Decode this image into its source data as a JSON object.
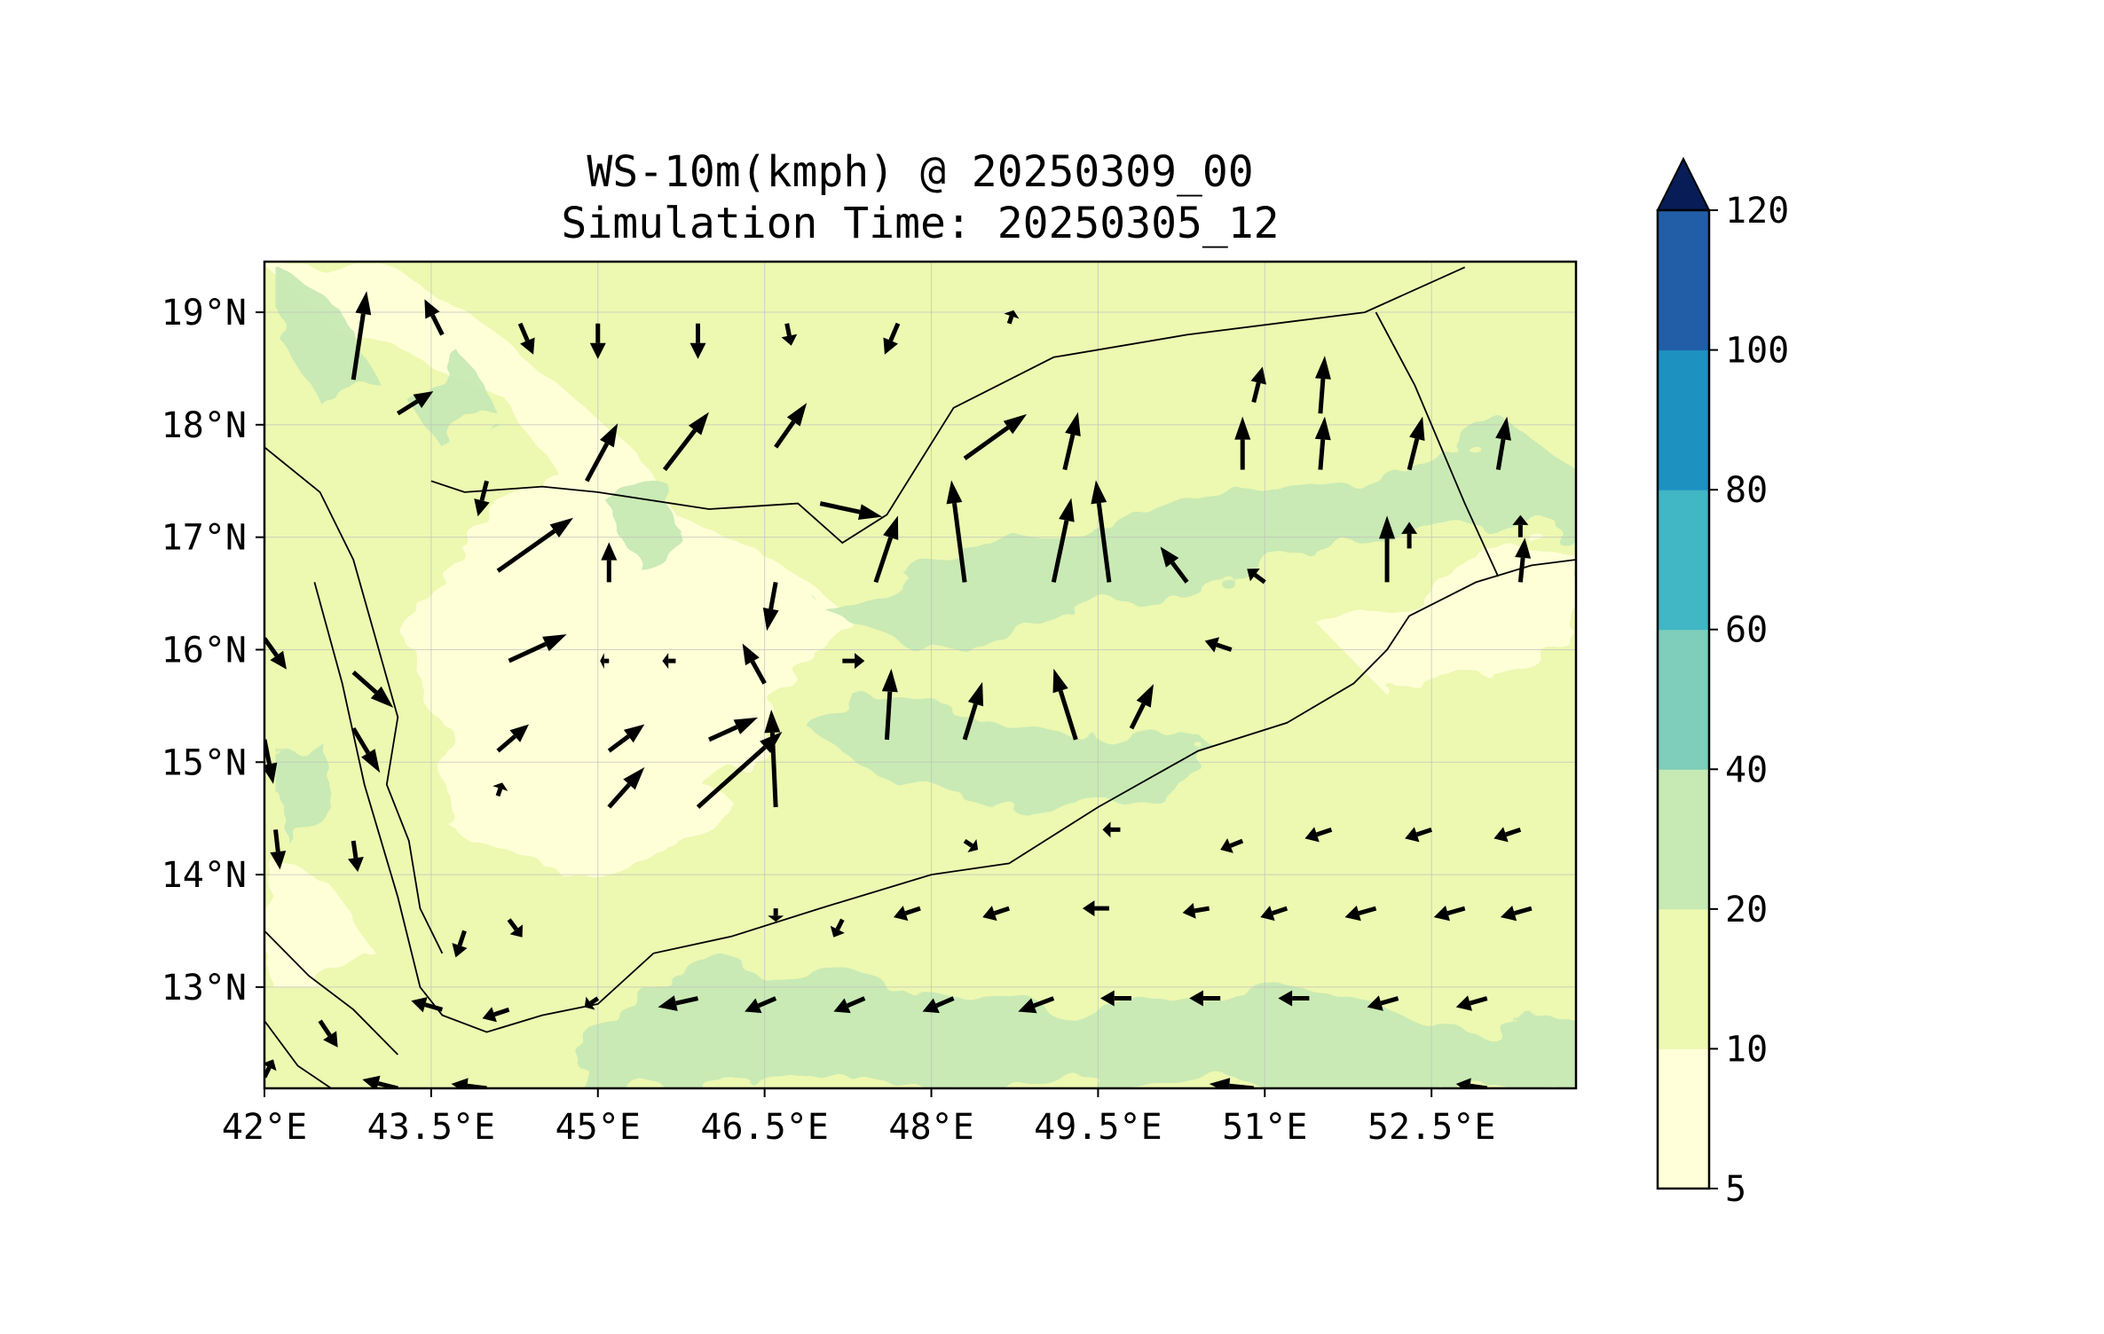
{
  "title": {
    "line1": "WS-10m(kmph) @ 20250309_00",
    "line2": "Simulation Time: 20250305_12"
  },
  "map": {
    "lon_range": [
      42.0,
      53.8
    ],
    "lat_range": [
      12.1,
      19.45
    ],
    "lon_ticks": [
      "42°E",
      "43.5°E",
      "45°E",
      "46.5°E",
      "48°E",
      "49.5°E",
      "51°E",
      "52.5°E"
    ],
    "lon_tick_values": [
      42.0,
      43.5,
      45.0,
      46.5,
      48.0,
      49.5,
      51.0,
      52.5
    ],
    "lat_ticks": [
      "19°N",
      "18°N",
      "17°N",
      "16°N",
      "15°N",
      "14°N",
      "13°N"
    ],
    "lat_tick_values": [
      19,
      18,
      17,
      16,
      15,
      14,
      13
    ],
    "gridlines": true,
    "coastline_yemen_south": [
      [
        42.45,
        16.6
      ],
      [
        42.7,
        15.7
      ],
      [
        42.9,
        14.8
      ],
      [
        43.2,
        13.8
      ],
      [
        43.4,
        13.0
      ],
      [
        43.6,
        12.75
      ],
      [
        44.0,
        12.6
      ],
      [
        44.5,
        12.75
      ],
      [
        45.0,
        12.85
      ],
      [
        45.5,
        13.3
      ],
      [
        46.2,
        13.45
      ],
      [
        47.0,
        13.7
      ],
      [
        48.0,
        14.0
      ],
      [
        48.7,
        14.1
      ],
      [
        49.5,
        14.6
      ],
      [
        50.4,
        15.1
      ],
      [
        51.2,
        15.35
      ],
      [
        51.8,
        15.7
      ],
      [
        52.1,
        16.0
      ],
      [
        52.3,
        16.3
      ],
      [
        52.9,
        16.6
      ],
      [
        53.4,
        16.75
      ],
      [
        53.8,
        16.8
      ]
    ],
    "border_north": [
      [
        43.5,
        17.5
      ],
      [
        43.8,
        17.4
      ],
      [
        44.5,
        17.45
      ],
      [
        45.0,
        17.4
      ],
      [
        46.0,
        17.25
      ],
      [
        46.8,
        17.3
      ],
      [
        47.2,
        16.95
      ],
      [
        47.6,
        17.2
      ],
      [
        48.2,
        18.15
      ],
      [
        49.1,
        18.6
      ],
      [
        50.3,
        18.8
      ],
      [
        51.9,
        19.0
      ],
      [
        52.8,
        19.4
      ]
    ],
    "border_oman": [
      [
        52.0,
        19.0
      ],
      [
        52.35,
        18.35
      ],
      [
        52.8,
        17.3
      ],
      [
        53.1,
        16.65
      ]
    ],
    "red_sea_coast_east": [
      [
        42.0,
        17.8
      ],
      [
        42.5,
        17.4
      ],
      [
        42.8,
        16.8
      ],
      [
        43.0,
        16.1
      ],
      [
        43.2,
        15.4
      ],
      [
        43.1,
        14.8
      ],
      [
        43.3,
        14.3
      ],
      [
        43.4,
        13.7
      ],
      [
        43.6,
        13.3
      ]
    ],
    "african_coast": [
      [
        42.0,
        13.5
      ],
      [
        42.4,
        13.1
      ],
      [
        42.8,
        12.8
      ],
      [
        43.2,
        12.4
      ]
    ],
    "red_sea_coast_west_lower": [
      [
        42.0,
        12.7
      ],
      [
        42.3,
        12.3
      ],
      [
        42.6,
        12.1
      ]
    ]
  },
  "wind_vectors": [
    [
      42.8,
      18.4,
      0.3,
      2.0
    ],
    [
      43.6,
      18.8,
      -0.4,
      0.8
    ],
    [
      44.3,
      18.9,
      0.3,
      -0.7
    ],
    [
      45.0,
      18.9,
      0,
      -0.8
    ],
    [
      45.9,
      18.9,
      0,
      -0.8
    ],
    [
      46.7,
      18.9,
      0.1,
      -0.5
    ],
    [
      47.7,
      18.9,
      -0.3,
      -0.7
    ],
    [
      48.7,
      18.9,
      0.1,
      0.3
    ],
    [
      43.2,
      18.1,
      0.8,
      0.5
    ],
    [
      44.0,
      17.5,
      -0.2,
      -0.8
    ],
    [
      44.9,
      17.5,
      0.7,
      1.3
    ],
    [
      45.6,
      17.6,
      1.0,
      1.3
    ],
    [
      46.6,
      17.8,
      0.7,
      1.0
    ],
    [
      47.0,
      17.3,
      1.4,
      -0.3
    ],
    [
      48.3,
      17.7,
      1.4,
      1.0
    ],
    [
      44.1,
      16.7,
      1.7,
      1.2
    ],
    [
      45.1,
      16.6,
      0,
      0.9
    ],
    [
      46.6,
      16.6,
      -0.2,
      -1.1
    ],
    [
      47.5,
      16.6,
      0.5,
      1.5
    ],
    [
      48.3,
      16.6,
      -0.3,
      2.3
    ],
    [
      49.1,
      16.6,
      0.4,
      1.9
    ],
    [
      49.6,
      16.6,
      -0.3,
      2.3
    ],
    [
      50.3,
      16.6,
      -0.6,
      0.8
    ],
    [
      51.0,
      16.6,
      -0.4,
      0.3
    ],
    [
      52.1,
      16.6,
      0,
      1.5
    ],
    [
      53.3,
      16.6,
      0.1,
      1.0
    ],
    [
      44.2,
      15.9,
      1.3,
      0.6
    ],
    [
      45.1,
      15.9,
      -0.2,
      0
    ],
    [
      45.7,
      15.9,
      -0.3,
      0
    ],
    [
      46.5,
      15.7,
      -0.5,
      0.9
    ],
    [
      47.2,
      15.9,
      0.5,
      0
    ],
    [
      47.6,
      15.2,
      0.1,
      1.6
    ],
    [
      48.3,
      15.2,
      0.4,
      1.3
    ],
    [
      49.3,
      15.2,
      -0.5,
      1.6
    ],
    [
      49.8,
      15.3,
      0.5,
      1.0
    ],
    [
      50.7,
      16.0,
      -0.6,
      0.2
    ],
    [
      42.8,
      15.8,
      0.9,
      -0.8
    ],
    [
      42.0,
      16.1,
      0.5,
      -0.7
    ],
    [
      42.8,
      15.3,
      0.6,
      -1.0
    ],
    [
      42.0,
      15.2,
      0.2,
      -1.0
    ],
    [
      44.1,
      15.1,
      0.7,
      0.6
    ],
    [
      45.1,
      15.1,
      0.8,
      0.6
    ],
    [
      46.0,
      15.2,
      1.1,
      0.5
    ],
    [
      46.6,
      14.6,
      -0.1,
      2.2
    ],
    [
      45.9,
      14.6,
      1.9,
      1.7
    ],
    [
      45.1,
      14.6,
      0.8,
      0.9
    ],
    [
      42.8,
      14.3,
      0.1,
      -0.7
    ],
    [
      42.1,
      14.4,
      0.1,
      -0.9
    ],
    [
      44.1,
      14.7,
      0.1,
      0.3
    ],
    [
      48.3,
      14.3,
      0.3,
      -0.2
    ],
    [
      49.7,
      14.4,
      -0.4,
      0
    ],
    [
      50.8,
      14.3,
      -0.5,
      -0.2
    ],
    [
      51.6,
      14.4,
      -0.6,
      -0.2
    ],
    [
      52.5,
      14.4,
      -0.6,
      -0.2
    ],
    [
      53.3,
      14.4,
      -0.6,
      -0.2
    ],
    [
      43.8,
      13.5,
      -0.2,
      -0.6
    ],
    [
      44.2,
      13.6,
      0.3,
      -0.4
    ],
    [
      46.6,
      13.7,
      0,
      -0.3
    ],
    [
      47.2,
      13.6,
      -0.2,
      -0.4
    ],
    [
      47.9,
      13.7,
      -0.6,
      -0.2
    ],
    [
      48.7,
      13.7,
      -0.6,
      -0.2
    ],
    [
      49.6,
      13.7,
      -0.6,
      0
    ],
    [
      50.5,
      13.7,
      -0.6,
      -0.1
    ],
    [
      51.2,
      13.7,
      -0.6,
      -0.2
    ],
    [
      52.0,
      13.7,
      -0.7,
      -0.2
    ],
    [
      52.8,
      13.7,
      -0.7,
      -0.2
    ],
    [
      53.4,
      13.7,
      -0.7,
      -0.2
    ],
    [
      43.6,
      12.8,
      -0.7,
      0.2
    ],
    [
      44.2,
      12.8,
      -0.6,
      -0.2
    ],
    [
      45.0,
      12.9,
      -0.3,
      -0.2
    ],
    [
      45.9,
      12.9,
      -0.9,
      -0.2
    ],
    [
      46.6,
      12.9,
      -0.7,
      -0.3
    ],
    [
      47.4,
      12.9,
      -0.7,
      -0.3
    ],
    [
      48.2,
      12.9,
      -0.7,
      -0.3
    ],
    [
      49.1,
      12.9,
      -0.8,
      -0.3
    ],
    [
      49.8,
      12.9,
      -0.7,
      0
    ],
    [
      50.6,
      12.9,
      -0.7,
      0
    ],
    [
      51.4,
      12.9,
      -0.7,
      0
    ],
    [
      52.2,
      12.9,
      -0.7,
      -0.2
    ],
    [
      53.0,
      12.9,
      -0.7,
      -0.2
    ],
    [
      42.5,
      12.7,
      0.4,
      -0.6
    ],
    [
      42.0,
      12.2,
      0.2,
      0.4
    ],
    [
      43.2,
      12.1,
      -0.8,
      0.2
    ],
    [
      44.0,
      12.1,
      -0.8,
      0.1
    ],
    [
      50.9,
      12.1,
      -1.0,
      0.1
    ],
    [
      53.0,
      12.1,
      -0.7,
      0.1
    ],
    [
      51.5,
      18.1,
      0.1,
      1.3
    ],
    [
      51.5,
      17.6,
      0.1,
      1.2
    ],
    [
      50.8,
      17.6,
      0,
      1.2
    ],
    [
      52.3,
      17.6,
      0.3,
      1.2
    ],
    [
      53.1,
      17.6,
      0.2,
      1.2
    ],
    [
      52.3,
      16.9,
      0,
      0.6
    ],
    [
      53.3,
      17.0,
      0,
      0.5
    ],
    [
      50.9,
      18.2,
      0.2,
      0.8
    ],
    [
      49.2,
      17.6,
      0.3,
      1.3
    ]
  ],
  "colorbar": {
    "levels": [
      "5",
      "10",
      "20",
      "40",
      "60",
      "80",
      "100",
      "120"
    ],
    "colors": [
      "#ffffd9",
      "#edf8b1",
      "#c7e9b4",
      "#7fcdbb",
      "#41b6c4",
      "#1d91c0",
      "#225ea8",
      "#0c2c84"
    ],
    "extend_color": "#081d58",
    "extend": "max"
  },
  "chart_data": {
    "type": "heatmap",
    "title": "WS-10m(kmph) @ 20250309_00\nSimulation Time: 20250305_12",
    "xlabel": "",
    "ylabel": "",
    "xlim": [
      42.0,
      53.8
    ],
    "ylim": [
      12.1,
      19.45
    ],
    "x_ticks": [
      42.0,
      43.5,
      45.0,
      46.5,
      48.0,
      49.5,
      51.0,
      52.5
    ],
    "y_ticks": [
      13,
      14,
      15,
      16,
      17,
      18,
      19
    ],
    "color_levels": [
      5,
      10,
      20,
      40,
      60,
      80,
      100,
      120
    ],
    "dominant_ranges": [
      "5-10",
      "10-20",
      "20-40"
    ]
  }
}
